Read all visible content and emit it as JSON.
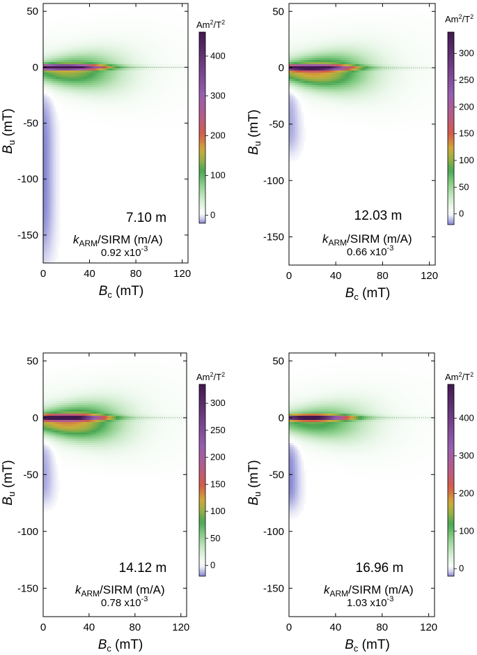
{
  "chart_data": [
    {
      "type": "heatmap",
      "label": "7.10 m",
      "xlabel": {
        "symbol": "B",
        "sub": "c",
        "unit": "(mT)"
      },
      "ylabel": {
        "symbol": "B",
        "sub": "u",
        "unit": "(mT)"
      },
      "xlim": [
        0,
        125
      ],
      "ylim": [
        -175,
        57
      ],
      "xticks": [
        0,
        40,
        80,
        120
      ],
      "yticks": [
        50,
        0,
        -50,
        -100,
        -150
      ],
      "colorbar": {
        "unit_base": "Am",
        "unit_sup1": "2",
        "unit_mid": "/T",
        "unit_sup2": "2",
        "range": [
          -20,
          460
        ],
        "ticks": [
          0,
          100,
          200,
          300,
          400
        ]
      },
      "ratio": {
        "symbol": "k",
        "sub": "ARM",
        "rest": "/SIRM (m/A)",
        "mantissa": "0.92 x10",
        "exp": "-3"
      },
      "features": {
        "ridge_peak": 460,
        "spread_max": 130,
        "neg_lobe_min": -20,
        "neg_lobe_extent": [
          -170,
          -15
        ]
      }
    },
    {
      "type": "heatmap",
      "label": "12.03 m",
      "xlabel": {
        "symbol": "B",
        "sub": "c",
        "unit": "(mT)"
      },
      "ylabel": {
        "symbol": "B",
        "sub": "u",
        "unit": "(mT)"
      },
      "xlim": [
        0,
        125
      ],
      "ylim": [
        -175,
        57
      ],
      "xticks": [
        0,
        40,
        80,
        120
      ],
      "yticks": [
        50,
        0,
        -50,
        -100,
        -150
      ],
      "colorbar": {
        "unit_base": "Am",
        "unit_sup1": "2",
        "unit_mid": "/T",
        "unit_sup2": "2",
        "range": [
          -20,
          340
        ],
        "ticks": [
          0,
          50,
          100,
          150,
          200,
          250,
          300
        ]
      },
      "ratio": {
        "symbol": "k",
        "sub": "ARM",
        "rest": "/SIRM (m/A)",
        "mantissa": "0.66 x10",
        "exp": "-3"
      },
      "features": {
        "ridge_peak": 340,
        "spread_max": 120,
        "neg_lobe_min": -15,
        "neg_lobe_extent": [
          -75,
          -10
        ]
      }
    },
    {
      "type": "heatmap",
      "label": "14.12 m",
      "xlabel": {
        "symbol": "B",
        "sub": "c",
        "unit": "(mT)"
      },
      "ylabel": {
        "symbol": "B",
        "sub": "u",
        "unit": "(mT)"
      },
      "xlim": [
        0,
        125
      ],
      "ylim": [
        -175,
        57
      ],
      "xticks": [
        0,
        40,
        80,
        120
      ],
      "yticks": [
        50,
        0,
        -50,
        -100,
        -150
      ],
      "colorbar": {
        "unit_base": "Am",
        "unit_sup1": "2",
        "unit_mid": "/T",
        "unit_sup2": "2",
        "range": [
          -20,
          335
        ],
        "ticks": [
          0,
          50,
          100,
          150,
          200,
          250,
          300
        ]
      },
      "ratio": {
        "symbol": "k",
        "sub": "ARM",
        "rest": "/SIRM (m/A)",
        "mantissa": "0.78 x10",
        "exp": "-3"
      },
      "features": {
        "ridge_peak": 335,
        "spread_max": 120,
        "neg_lobe_min": -15,
        "neg_lobe_extent": [
          -75,
          -15
        ]
      }
    },
    {
      "type": "heatmap",
      "label": "16.96 m",
      "xlabel": {
        "symbol": "B",
        "sub": "c",
        "unit": "(mT)"
      },
      "ylabel": {
        "symbol": "B",
        "sub": "u",
        "unit": "(mT)"
      },
      "xlim": [
        0,
        125
      ],
      "ylim": [
        -175,
        57
      ],
      "xticks": [
        0,
        40,
        80,
        120
      ],
      "yticks": [
        50,
        0,
        -50,
        -100,
        -150
      ],
      "colorbar": {
        "unit_base": "Am",
        "unit_sup1": "2",
        "unit_mid": "/T",
        "unit_sup2": "2",
        "range": [
          -20,
          490
        ],
        "ticks": [
          0,
          100,
          200,
          300,
          400
        ]
      },
      "ratio": {
        "symbol": "k",
        "sub": "ARM",
        "rest": "/SIRM (m/A)",
        "mantissa": "1.03 x10",
        "exp": "-3"
      },
      "features": {
        "ridge_peak": 490,
        "spread_max": 115,
        "neg_lobe_min": -20,
        "neg_lobe_extent": [
          -80,
          -15
        ]
      }
    }
  ]
}
